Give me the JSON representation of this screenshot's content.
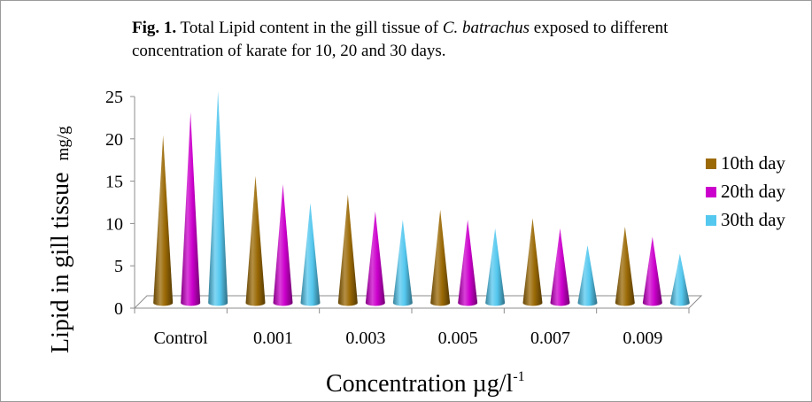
{
  "caption": {
    "fig_label": "Fig. 1.",
    "text_before": " Total Lipid content in the gill tissue of ",
    "species": "C. batrachus",
    "text_after": " exposed to different concentration of karate for 10, 20 and 30 days."
  },
  "chart_data": {
    "type": "bar",
    "style": "3d-cone",
    "categories": [
      "Control",
      "0.001",
      "0.003",
      "0.005",
      "0.007",
      "0.009"
    ],
    "series": [
      {
        "name": "10th day",
        "color": "#9b6a06",
        "values": [
          19.8,
          15.0,
          12.8,
          11.0,
          10.0,
          9.0
        ]
      },
      {
        "name": "20th day",
        "color": "#cc00cc",
        "values": [
          22.5,
          14.0,
          10.8,
          9.8,
          8.8,
          7.8
        ]
      },
      {
        "name": "30th day",
        "color": "#55c8ef",
        "values": [
          25.0,
          11.8,
          9.8,
          8.8,
          6.8,
          5.8
        ]
      }
    ],
    "ylim": [
      0,
      25
    ],
    "yticks": [
      0,
      5,
      10,
      15,
      20,
      25
    ],
    "ylabel": "Lipid in gill tissue",
    "ylabel_unit": "mg/g",
    "xlabel": "Concentration  µg/l",
    "xlabel_superscript": "-1",
    "legend_position": "right",
    "grid": false
  }
}
